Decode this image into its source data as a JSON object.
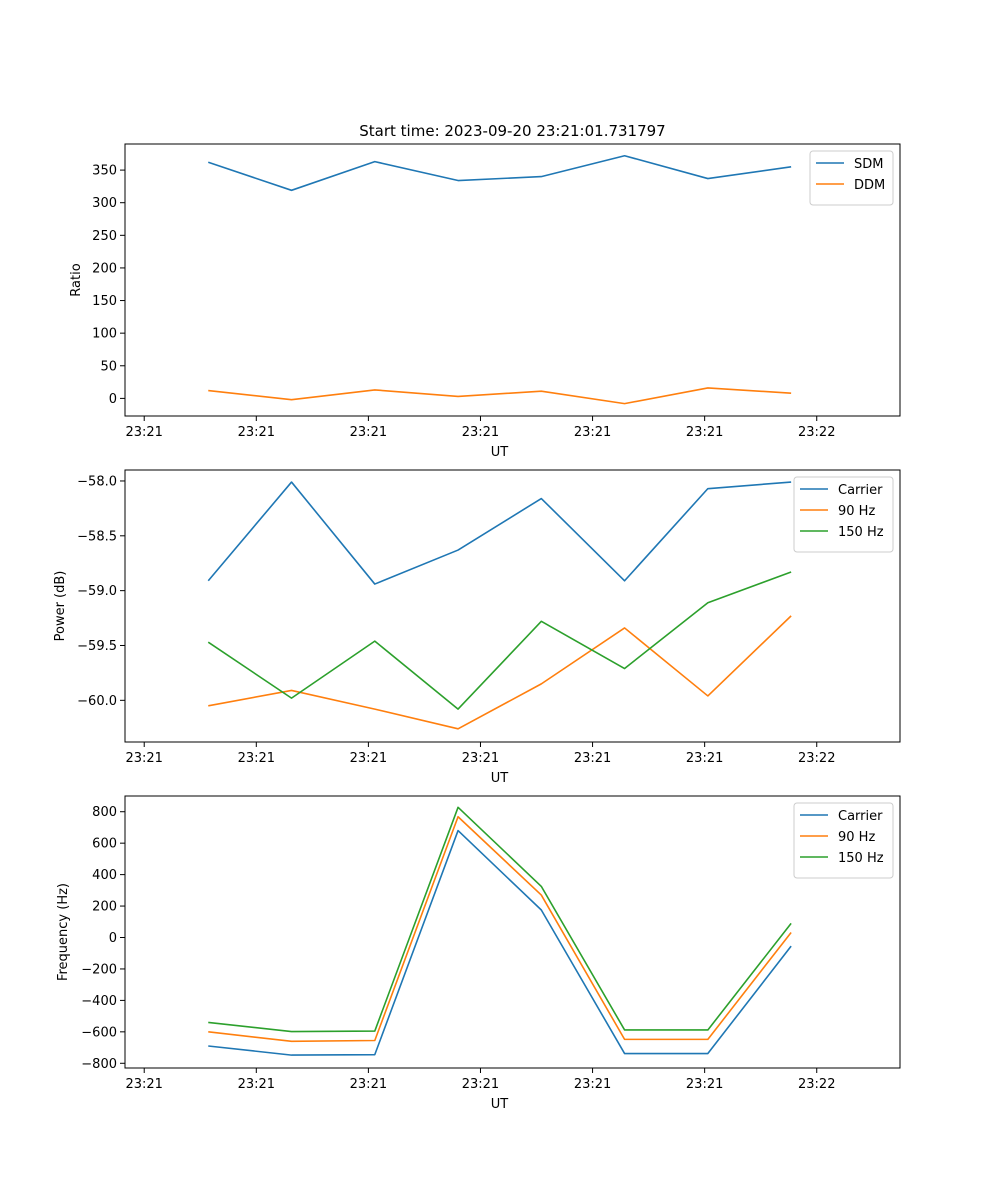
{
  "figure_title": "Start time: 2023-09-20 23:21:01.731797",
  "chart_data": [
    {
      "type": "line",
      "title": "Start time: 2023-09-20 23:21:01.731797",
      "xlabel": "UT",
      "ylabel": "Ratio",
      "x_tick_labels": [
        "23:21",
        "23:21",
        "23:21",
        "23:21",
        "23:21",
        "23:21",
        "23:22"
      ],
      "x_range": [
        -0.3,
        11.8
      ],
      "x": [
        1,
        2.3,
        3.6,
        4.9,
        6.2,
        7.5,
        8.8,
        10.1
      ],
      "ylim": [
        -27,
        390
      ],
      "yticks": [
        0,
        50,
        100,
        150,
        200,
        250,
        300,
        350
      ],
      "ytick_labels": [
        "0",
        "50",
        "100",
        "150",
        "200",
        "250",
        "300",
        "350"
      ],
      "legend_position": "top-right",
      "series": [
        {
          "name": "SDM",
          "color": "#1f77b4",
          "values": [
            362,
            319,
            363,
            334,
            340,
            372,
            337,
            355
          ]
        },
        {
          "name": "DDM",
          "color": "#ff7f0e",
          "values": [
            12,
            -2,
            13,
            3,
            11,
            -8,
            16,
            8
          ]
        }
      ]
    },
    {
      "type": "line",
      "title": "",
      "xlabel": "UT",
      "ylabel": "Power (dB)",
      "x_tick_labels": [
        "23:21",
        "23:21",
        "23:21",
        "23:21",
        "23:21",
        "23:21",
        "23:22"
      ],
      "x_range": [
        -0.3,
        11.8
      ],
      "x": [
        1,
        2.3,
        3.6,
        4.9,
        6.2,
        7.5,
        8.8,
        10.1
      ],
      "ylim": [
        -60.38,
        -57.9
      ],
      "yticks": [
        -60.0,
        -59.5,
        -59.0,
        -58.5,
        -58.0
      ],
      "ytick_labels": [
        "−60.0",
        "−59.5",
        "−59.0",
        "−58.5",
        "−58.0"
      ],
      "legend_position": "top-right",
      "series": [
        {
          "name": "Carrier",
          "color": "#1f77b4",
          "values": [
            -58.91,
            -58.01,
            -58.94,
            -58.63,
            -58.16,
            -58.91,
            -58.07,
            -58.01
          ]
        },
        {
          "name": "90 Hz",
          "color": "#ff7f0e",
          "values": [
            -60.05,
            -59.91,
            -60.08,
            -60.26,
            -59.85,
            -59.34,
            -59.96,
            -59.23
          ]
        },
        {
          "name": "150 Hz",
          "color": "#2ca02c",
          "values": [
            -59.47,
            -59.98,
            -59.46,
            -60.08,
            -59.28,
            -59.71,
            -59.11,
            -58.83
          ]
        }
      ]
    },
    {
      "type": "line",
      "title": "",
      "xlabel": "UT",
      "ylabel": "Frequency (Hz)",
      "x_tick_labels": [
        "23:21",
        "23:21",
        "23:21",
        "23:21",
        "23:21",
        "23:21",
        "23:22"
      ],
      "x_range": [
        -0.3,
        11.8
      ],
      "x": [
        1,
        2.3,
        3.6,
        4.9,
        6.2,
        7.5,
        8.8,
        10.1
      ],
      "ylim": [
        -830,
        900
      ],
      "yticks": [
        -800,
        -600,
        -400,
        -200,
        0,
        200,
        400,
        600,
        800
      ],
      "ytick_labels": [
        "−800",
        "−600",
        "−400",
        "−200",
        "0",
        "200",
        "400",
        "600",
        "800"
      ],
      "legend_position": "top-right",
      "series": [
        {
          "name": "Carrier",
          "color": "#1f77b4",
          "values": [
            -690,
            -748,
            -745,
            680,
            175,
            -738,
            -738,
            -55
          ]
        },
        {
          "name": "90 Hz",
          "color": "#ff7f0e",
          "values": [
            -600,
            -660,
            -655,
            768,
            270,
            -648,
            -648,
            32
          ]
        },
        {
          "name": "150 Hz",
          "color": "#2ca02c",
          "values": [
            -540,
            -598,
            -595,
            828,
            325,
            -588,
            -588,
            90
          ]
        }
      ]
    }
  ]
}
